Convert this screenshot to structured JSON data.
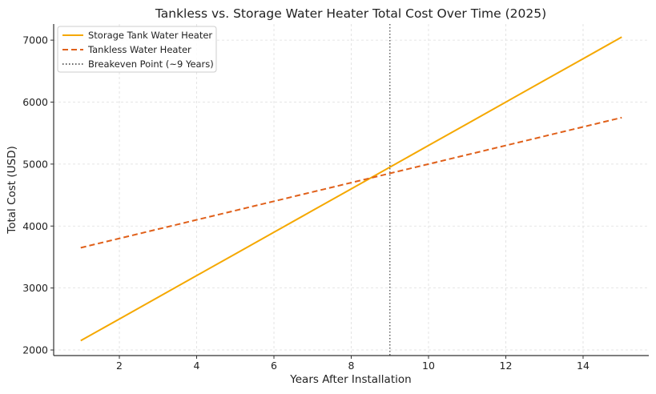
{
  "chart_data": {
    "type": "line",
    "title": "Tankless vs. Storage Water Heater Total Cost Over Time (2025)",
    "xlabel": "Years After Installation",
    "ylabel": "Total Cost (USD)",
    "xlim": [
      0.3,
      15.7
    ],
    "ylim": [
      1910,
      7260
    ],
    "xticks": [
      2,
      4,
      6,
      8,
      10,
      12,
      14
    ],
    "yticks": [
      2000,
      3000,
      4000,
      5000,
      6000,
      7000
    ],
    "grid": true,
    "legend_position": "top-left",
    "series": [
      {
        "name": "Storage Tank Water Heater",
        "color": "#f5a800",
        "style": "solid",
        "x": [
          1,
          2,
          3,
          4,
          5,
          6,
          7,
          8,
          9,
          10,
          11,
          12,
          13,
          14,
          15
        ],
        "y": [
          2150,
          2500,
          2850,
          3200,
          3550,
          3900,
          4250,
          4600,
          4950,
          5300,
          5650,
          6000,
          6350,
          6700,
          7050
        ]
      },
      {
        "name": "Tankless Water Heater",
        "color": "#e0601a",
        "style": "dashed",
        "x": [
          1,
          2,
          3,
          4,
          5,
          6,
          7,
          8,
          9,
          10,
          11,
          12,
          13,
          14,
          15
        ],
        "y": [
          3650,
          3800,
          3950,
          4100,
          4250,
          4400,
          4550,
          4700,
          4850,
          5000,
          5150,
          5300,
          5450,
          5600,
          5750
        ]
      }
    ],
    "vlines": [
      {
        "name": "Breakeven Point (~9 Years)",
        "x": 9,
        "color": "#666666",
        "style": "dotted"
      }
    ]
  }
}
